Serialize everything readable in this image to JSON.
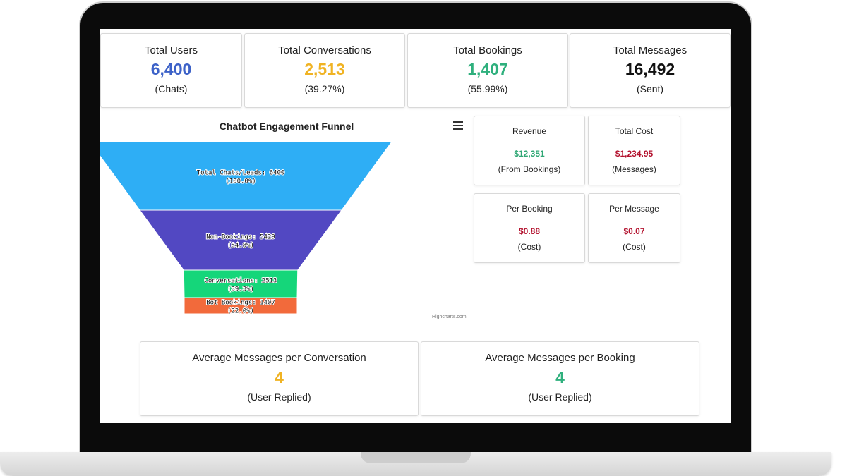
{
  "stats": [
    {
      "title": "Total Users",
      "value": "6,400",
      "sub": "(Chats)",
      "color": "#3d62c8"
    },
    {
      "title": "Total Conversations",
      "value": "2,513",
      "sub": "(39.27%)",
      "color": "#f0b323"
    },
    {
      "title": "Total Bookings",
      "value": "1,407",
      "sub": "(55.99%)",
      "color": "#2fb07d"
    },
    {
      "title": "Total Messages",
      "value": "16,492",
      "sub": "(Sent)",
      "color": "#111111"
    }
  ],
  "chart": {
    "title": "Chatbot Engagement Funnel",
    "credits": "Highcharts.com"
  },
  "chart_data": {
    "type": "funnel",
    "title": "Chatbot Engagement Funnel",
    "stages": [
      {
        "name": "Total Chats/Leads",
        "value": 6400,
        "percent": "100.0%",
        "label": "Total Chats/Leads: 6400",
        "pct_label": "(100.0%)",
        "color": "#2eaef5"
      },
      {
        "name": "Non-Bookings",
        "value": 5429,
        "percent": "84.8%",
        "label": "Non-Bookings: 5429",
        "pct_label": "(84.8%)",
        "color": "#5248c2"
      },
      {
        "name": "Conversations",
        "value": 2513,
        "percent": "39.3%",
        "label": "Conversations: 2513",
        "pct_label": "(39.3%)",
        "color": "#15d67a"
      },
      {
        "name": "Bot Bookings",
        "value": 1407,
        "percent": "22.0%",
        "label": "Bot Bookings: 1407",
        "pct_label": "(22.0%)",
        "color": "#f26a3b"
      }
    ]
  },
  "metrics": [
    {
      "title": "Revenue",
      "value": "$12,351",
      "sub": "(From Bookings)",
      "color": "#2fa774"
    },
    {
      "title": "Total Cost",
      "value": "$1,234.95",
      "sub": "(Messages)",
      "color": "#b3122e"
    },
    {
      "title": "Per Booking",
      "value": "$0.88",
      "sub": "(Cost)",
      "color": "#b3122e"
    },
    {
      "title": "Per Message",
      "value": "$0.07",
      "sub": "(Cost)",
      "color": "#b3122e"
    }
  ],
  "averages": [
    {
      "title": "Average Messages per Conversation",
      "value": "4",
      "sub": "(User Replied)",
      "color": "#f0b323"
    },
    {
      "title": "Average Messages per Booking",
      "value": "4",
      "sub": "(User Replied)",
      "color": "#2fb07d"
    }
  ]
}
